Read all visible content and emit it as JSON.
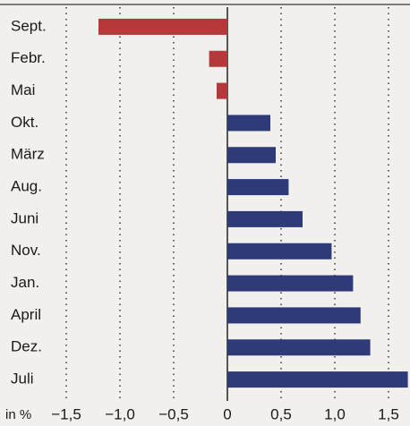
{
  "chart_data": {
    "type": "hbar",
    "categories": [
      "Sept.",
      "Febr.",
      "Mai",
      "Okt.",
      "März",
      "Aug.",
      "Juni",
      "Nov.",
      "Jan.",
      "April",
      "Dez.",
      "Juli"
    ],
    "values": [
      -1.2,
      -0.17,
      -0.1,
      0.4,
      0.45,
      0.57,
      0.7,
      0.97,
      1.17,
      1.24,
      1.33,
      1.68
    ],
    "color": "#2f3b78",
    "negative_color": "#b5393b",
    "xlabel": "in %",
    "xlim": [
      -1.55,
      1.7
    ],
    "xticks": [
      {
        "value": -1.5,
        "label": "−1,5"
      },
      {
        "value": -1.0,
        "label": "−1,0"
      },
      {
        "value": -0.5,
        "label": "−0,5"
      },
      0,
      {
        "value": 0.5,
        "label": "0,5"
      },
      {
        "value": 1.0,
        "label": "1,0"
      },
      {
        "value": 1.5,
        "label": "1,5"
      }
    ],
    "grid": true
  }
}
